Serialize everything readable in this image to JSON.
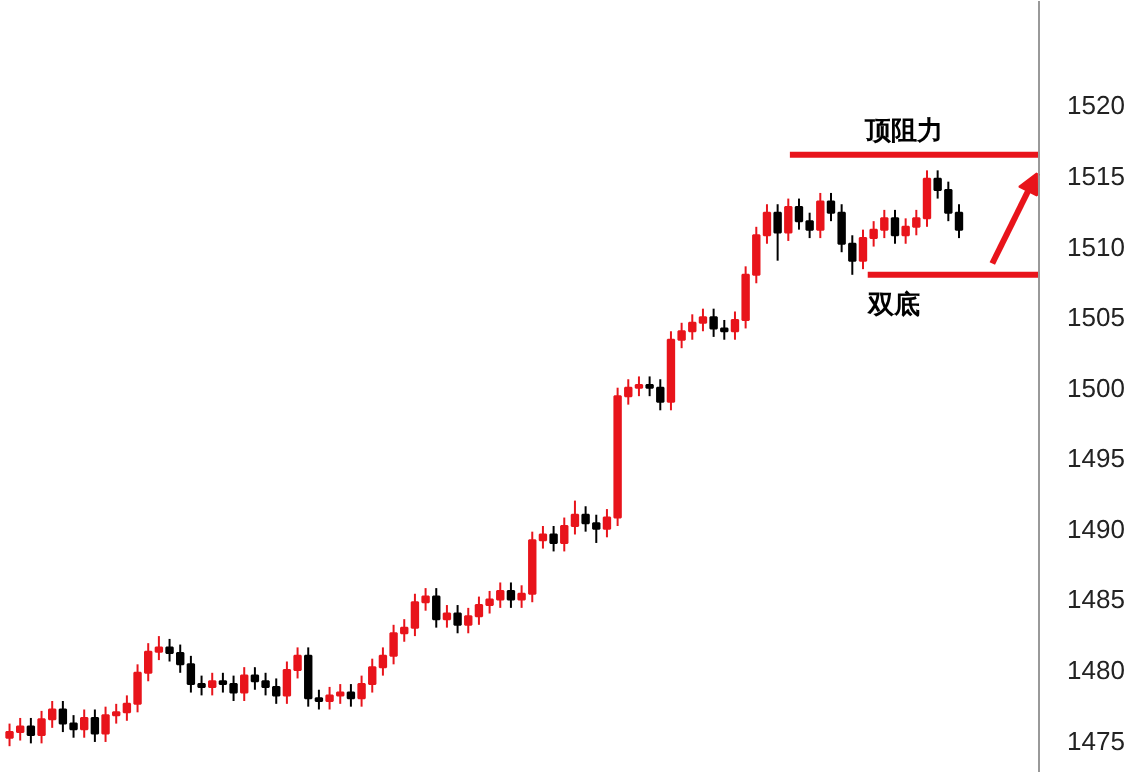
{
  "chart_data": {
    "type": "candlestick",
    "categories": [
      null,
      null,
      null,
      null,
      null,
      null,
      null,
      null,
      null,
      null,
      null,
      null,
      null,
      null,
      null,
      null,
      null,
      null,
      null,
      null,
      null,
      null,
      null,
      null,
      null,
      null,
      null,
      null,
      null,
      null,
      null,
      null,
      null,
      null,
      null,
      null,
      null,
      null,
      null,
      null,
      null,
      null,
      null,
      null,
      null,
      null,
      null,
      null,
      null,
      null,
      null,
      null,
      null,
      null,
      null,
      null,
      null,
      null,
      null,
      null,
      null,
      null,
      null,
      null,
      null,
      null,
      null,
      null,
      null,
      null,
      null,
      null,
      null,
      null,
      null,
      null,
      null,
      null,
      null,
      null,
      null,
      null,
      null,
      null,
      null,
      null,
      null,
      null,
      null,
      null
    ],
    "ohlc": [
      [
        1475.2,
        1476.2,
        1474.6,
        1475.6
      ],
      [
        1475.6,
        1476.6,
        1475.0,
        1476.0
      ],
      [
        1476.0,
        1476.6,
        1474.8,
        1475.4
      ],
      [
        1475.4,
        1477.1,
        1474.8,
        1476.5
      ],
      [
        1476.5,
        1477.8,
        1475.9,
        1477.2
      ],
      [
        1477.2,
        1477.8,
        1475.6,
        1476.2
      ],
      [
        1476.2,
        1476.8,
        1475.2,
        1475.8
      ],
      [
        1475.8,
        1477.2,
        1475.2,
        1476.6
      ],
      [
        1476.6,
        1477.2,
        1474.9,
        1475.5
      ],
      [
        1475.5,
        1477.4,
        1474.9,
        1476.8
      ],
      [
        1476.8,
        1477.6,
        1476.2,
        1477.0
      ],
      [
        1477.0,
        1478.2,
        1476.4,
        1477.6
      ],
      [
        1477.6,
        1480.4,
        1477.0,
        1479.8
      ],
      [
        1479.8,
        1481.9,
        1479.2,
        1481.3
      ],
      [
        1481.3,
        1482.4,
        1480.7,
        1481.6
      ],
      [
        1481.6,
        1482.2,
        1480.6,
        1481.2
      ],
      [
        1481.2,
        1481.8,
        1479.8,
        1480.4
      ],
      [
        1480.4,
        1481.0,
        1478.4,
        1479.0
      ],
      [
        1479.0,
        1479.6,
        1478.2,
        1478.8
      ],
      [
        1478.8,
        1479.8,
        1478.2,
        1479.2
      ],
      [
        1479.2,
        1479.8,
        1478.4,
        1479.0
      ],
      [
        1479.0,
        1479.6,
        1477.8,
        1478.4
      ],
      [
        1478.4,
        1480.2,
        1477.8,
        1479.6
      ],
      [
        1479.6,
        1480.2,
        1478.6,
        1479.2
      ],
      [
        1479.2,
        1479.8,
        1478.2,
        1478.8
      ],
      [
        1478.8,
        1479.4,
        1477.6,
        1478.2
      ],
      [
        1478.2,
        1480.6,
        1477.6,
        1480.0
      ],
      [
        1480.0,
        1481.6,
        1479.4,
        1481.0
      ],
      [
        1481.0,
        1481.6,
        1477.4,
        1478.0
      ],
      [
        1478.0,
        1478.6,
        1477.2,
        1477.8
      ],
      [
        1477.8,
        1478.8,
        1477.2,
        1478.2
      ],
      [
        1478.2,
        1479.0,
        1477.6,
        1478.4
      ],
      [
        1478.4,
        1479.0,
        1477.4,
        1478.0
      ],
      [
        1478.0,
        1479.6,
        1477.4,
        1479.0
      ],
      [
        1479.0,
        1480.8,
        1478.4,
        1480.2
      ],
      [
        1480.2,
        1481.6,
        1479.6,
        1481.0
      ],
      [
        1481.0,
        1483.2,
        1480.4,
        1482.6
      ],
      [
        1482.6,
        1483.6,
        1482.0,
        1483.0
      ],
      [
        1483.0,
        1485.4,
        1482.4,
        1484.8
      ],
      [
        1484.8,
        1485.8,
        1484.2,
        1485.2
      ],
      [
        1485.2,
        1485.8,
        1483.0,
        1483.6
      ],
      [
        1483.6,
        1484.6,
        1483.0,
        1484.0
      ],
      [
        1484.0,
        1484.6,
        1482.6,
        1483.2
      ],
      [
        1483.2,
        1484.4,
        1482.6,
        1483.8
      ],
      [
        1483.8,
        1485.2,
        1483.2,
        1484.6
      ],
      [
        1484.6,
        1485.6,
        1484.0,
        1485.0
      ],
      [
        1485.0,
        1486.2,
        1484.4,
        1485.6
      ],
      [
        1485.6,
        1486.2,
        1484.4,
        1485.0
      ],
      [
        1485.0,
        1486.0,
        1484.4,
        1485.4
      ],
      [
        1485.4,
        1489.8,
        1484.8,
        1489.2
      ],
      [
        1489.2,
        1490.2,
        1488.6,
        1489.6
      ],
      [
        1489.6,
        1490.2,
        1488.4,
        1489.0
      ],
      [
        1489.0,
        1490.8,
        1488.4,
        1490.2
      ],
      [
        1490.2,
        1492.0,
        1489.6,
        1491.0
      ],
      [
        1491.0,
        1491.6,
        1489.8,
        1490.4
      ],
      [
        1490.4,
        1491.0,
        1489.0,
        1490.0
      ],
      [
        1490.0,
        1491.4,
        1489.4,
        1490.8
      ],
      [
        1490.8,
        1500.0,
        1490.2,
        1499.4
      ],
      [
        1499.4,
        1500.6,
        1498.8,
        1500.0
      ],
      [
        1500.0,
        1500.8,
        1499.4,
        1500.2
      ],
      [
        1500.2,
        1500.8,
        1499.4,
        1500.0
      ],
      [
        1500.0,
        1500.6,
        1498.4,
        1499.0
      ],
      [
        1499.0,
        1504.0,
        1498.4,
        1503.4
      ],
      [
        1503.4,
        1504.6,
        1502.8,
        1504.0
      ],
      [
        1504.0,
        1505.2,
        1503.4,
        1504.6
      ],
      [
        1504.6,
        1505.6,
        1504.0,
        1505.0
      ],
      [
        1505.0,
        1505.6,
        1503.6,
        1504.2
      ],
      [
        1504.2,
        1504.8,
        1503.4,
        1504.0
      ],
      [
        1504.0,
        1505.4,
        1503.4,
        1504.8
      ],
      [
        1504.8,
        1508.6,
        1504.2,
        1508.0
      ],
      [
        1508.0,
        1511.4,
        1507.4,
        1510.8
      ],
      [
        1510.8,
        1513.0,
        1510.2,
        1512.4
      ],
      [
        1512.4,
        1513.0,
        1509.0,
        1511.0
      ],
      [
        1511.0,
        1513.4,
        1510.4,
        1512.8
      ],
      [
        1512.8,
        1513.4,
        1511.2,
        1511.8
      ],
      [
        1511.8,
        1512.4,
        1510.6,
        1511.2
      ],
      [
        1511.2,
        1513.8,
        1510.6,
        1513.2
      ],
      [
        1513.2,
        1513.8,
        1511.8,
        1512.4
      ],
      [
        1512.4,
        1513.0,
        1509.6,
        1510.2
      ],
      [
        1510.2,
        1510.8,
        1508.0,
        1509.0
      ],
      [
        1509.0,
        1511.2,
        1508.4,
        1510.6
      ],
      [
        1510.6,
        1511.8,
        1510.0,
        1511.2
      ],
      [
        1511.2,
        1512.6,
        1510.6,
        1512.0
      ],
      [
        1512.0,
        1512.6,
        1510.2,
        1510.8
      ],
      [
        1510.8,
        1512.0,
        1510.2,
        1511.4
      ],
      [
        1511.4,
        1512.6,
        1510.8,
        1512.0
      ],
      [
        1512.0,
        1515.4,
        1511.4,
        1514.8
      ],
      [
        1514.8,
        1515.4,
        1513.4,
        1514.0
      ],
      [
        1514.0,
        1514.6,
        1511.8,
        1512.4
      ],
      [
        1512.4,
        1513.0,
        1510.6,
        1511.2
      ]
    ],
    "colors": [
      "#e8141b",
      "#e8141b",
      "#000000",
      "#e8141b",
      "#e8141b",
      "#000000",
      "#000000",
      "#e8141b",
      "#000000",
      "#e8141b",
      "#e8141b",
      "#e8141b",
      "#e8141b",
      "#e8141b",
      "#e8141b",
      "#000000",
      "#000000",
      "#000000",
      "#000000",
      "#e8141b",
      "#000000",
      "#000000",
      "#e8141b",
      "#000000",
      "#000000",
      "#000000",
      "#e8141b",
      "#e8141b",
      "#000000",
      "#000000",
      "#e8141b",
      "#e8141b",
      "#000000",
      "#e8141b",
      "#e8141b",
      "#e8141b",
      "#e8141b",
      "#e8141b",
      "#e8141b",
      "#e8141b",
      "#000000",
      "#e8141b",
      "#000000",
      "#e8141b",
      "#e8141b",
      "#e8141b",
      "#e8141b",
      "#000000",
      "#e8141b",
      "#e8141b",
      "#e8141b",
      "#000000",
      "#e8141b",
      "#e8141b",
      "#000000",
      "#000000",
      "#e8141b",
      "#e8141b",
      "#e8141b",
      "#e8141b",
      "#000000",
      "#000000",
      "#e8141b",
      "#e8141b",
      "#e8141b",
      "#e8141b",
      "#000000",
      "#000000",
      "#e8141b",
      "#e8141b",
      "#e8141b",
      "#e8141b",
      "#000000",
      "#e8141b",
      "#000000",
      "#000000",
      "#e8141b",
      "#000000",
      "#000000",
      "#000000",
      "#e8141b",
      "#e8141b",
      "#e8141b",
      "#000000",
      "#e8141b",
      "#e8141b",
      "#e8141b",
      "#000000",
      "#000000",
      "#000000"
    ],
    "ylim": [
      1472.7,
      1527.4
    ],
    "yticks": [
      1475,
      1480,
      1485,
      1490,
      1495,
      1500,
      1505,
      1510,
      1515,
      1520
    ],
    "tick_labels": "y",
    "grid": false,
    "ref_lines": [
      {
        "axis": "y",
        "value": 1516.5,
        "label": "顶阻力",
        "color": "#e8141b"
      },
      {
        "axis": "y",
        "value": 1508.0,
        "label": "双底",
        "color": "#e8141b"
      }
    ]
  }
}
